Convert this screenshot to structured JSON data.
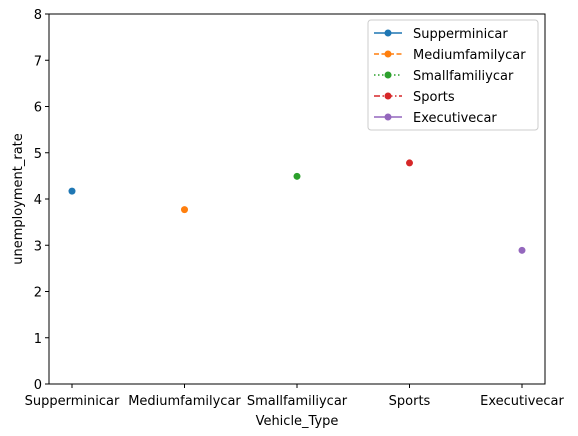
{
  "chart_data": {
    "type": "scatter",
    "title": "",
    "xlabel": "Vehicle_Type",
    "ylabel": "unemployment_rate",
    "categories": [
      "Supperminicar",
      "Mediumfamilycar",
      "Smallfamiliycar",
      "Sports",
      "Executivecar"
    ],
    "ylim": [
      0,
      8
    ],
    "yticks": [
      "0",
      "1",
      "2",
      "3",
      "4",
      "5",
      "6",
      "7",
      "8"
    ],
    "grid": false,
    "legend_position": "top-right",
    "series": [
      {
        "name": "Supperminicar",
        "x": "Supperminicar",
        "value": 4.17,
        "color": "#1f77b4",
        "line_style": "solid"
      },
      {
        "name": "Mediumfamilycar",
        "x": "Mediumfamilycar",
        "value": 3.77,
        "color": "#ff7f0e",
        "line_style": "dashed"
      },
      {
        "name": "Smallfamiliycar",
        "x": "Smallfamiliycar",
        "value": 4.49,
        "color": "#2ca02c",
        "line_style": "dotted"
      },
      {
        "name": "Sports",
        "x": "Sports",
        "value": 4.78,
        "color": "#d62728",
        "line_style": "dashdot"
      },
      {
        "name": "Executivecar",
        "x": "Executivecar",
        "value": 2.89,
        "color": "#9467bd",
        "line_style": "solid"
      }
    ]
  }
}
